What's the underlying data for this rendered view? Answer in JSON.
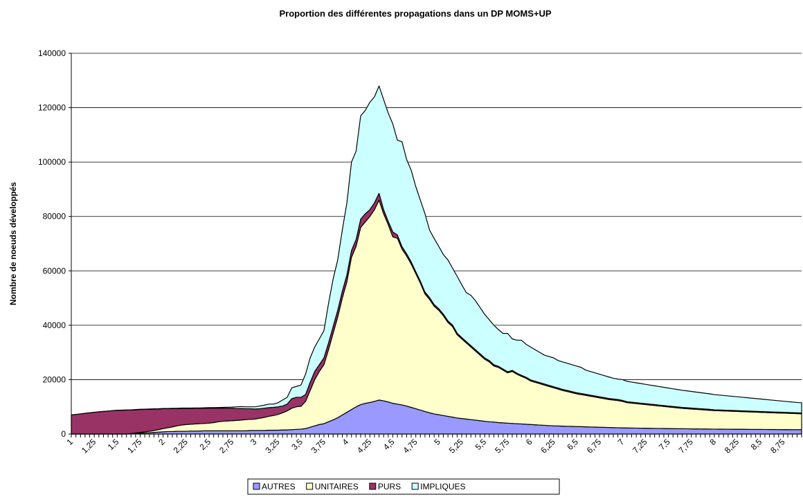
{
  "chart_data": {
    "type": "stacked_area",
    "title": "Proportion des différentes propagations dans un DP MOMS+UP",
    "y_label": "Nombre de noeuds développés",
    "categories": [
      "1",
      null,
      null,
      null,
      null,
      "1,25",
      null,
      null,
      null,
      null,
      "1,5",
      null,
      null,
      null,
      null,
      "1,75",
      null,
      null,
      null,
      null,
      "2",
      null,
      null,
      null,
      null,
      "2,25",
      null,
      null,
      null,
      null,
      "2,5",
      null,
      null,
      null,
      null,
      "2,75",
      null,
      null,
      null,
      null,
      "3",
      null,
      null,
      null,
      null,
      "3,25",
      null,
      null,
      null,
      null,
      "3,5",
      null,
      null,
      null,
      null,
      "3,75",
      null,
      null,
      null,
      null,
      "4",
      null,
      null,
      null,
      null,
      "4,25",
      null,
      null,
      null,
      null,
      "4,5",
      null,
      null,
      null,
      null,
      "4,75",
      null,
      null,
      null,
      null,
      "5",
      null,
      null,
      null,
      null,
      "5,25",
      null,
      null,
      null,
      null,
      "5,5",
      null,
      null,
      null,
      null,
      "5,75",
      null,
      null,
      null,
      null,
      "6",
      null,
      null,
      null,
      null,
      "6,25",
      null,
      null,
      null,
      null,
      "6,5",
      null,
      null,
      null,
      null,
      "6,75",
      null,
      null,
      null,
      null,
      "7",
      null,
      null,
      null,
      null,
      "7,25",
      null,
      null,
      null,
      null,
      "7,5",
      null,
      null,
      null,
      null,
      "7,75",
      null,
      null,
      null,
      null,
      "8",
      null,
      null,
      null,
      null,
      "8,25",
      null,
      null,
      null,
      null,
      "8,5",
      null,
      null,
      null,
      null,
      "8,75",
      null,
      null,
      null,
      null
    ],
    "series": [
      {
        "name": "AUTRES",
        "color": "#9999ff",
        "values": [
          0,
          0,
          0,
          0,
          0,
          0,
          0,
          0,
          0,
          0,
          0,
          0,
          0,
          100,
          200,
          300,
          400,
          500,
          600,
          700,
          800,
          900,
          900,
          1000,
          1000,
          1000,
          1100,
          1100,
          1100,
          1200,
          1200,
          1200,
          1200,
          1200,
          1200,
          1200,
          1200,
          1200,
          1200,
          1300,
          1300,
          1300,
          1300,
          1400,
          1400,
          1400,
          1500,
          1500,
          1600,
          1700,
          1800,
          2000,
          2500,
          3000,
          3500,
          3800,
          4500,
          5200,
          6000,
          7000,
          8000,
          9000,
          10000,
          10800,
          11300,
          11600,
          12000,
          12500,
          12200,
          11800,
          11300,
          11000,
          10700,
          10300,
          9800,
          9300,
          8800,
          8300,
          7800,
          7400,
          7100,
          6800,
          6500,
          6200,
          5900,
          5700,
          5500,
          5300,
          5100,
          4900,
          4700,
          4500,
          4400,
          4200,
          4100,
          4000,
          3900,
          3800,
          3700,
          3600,
          3500,
          3400,
          3300,
          3200,
          3100,
          3000,
          2950,
          2900,
          2850,
          2800,
          2750,
          2700,
          2650,
          2600,
          2550,
          2500,
          2450,
          2400,
          2350,
          2300,
          2250,
          2230,
          2200,
          2180,
          2150,
          2130,
          2100,
          2080,
          2050,
          2030,
          2000,
          1980,
          1960,
          1940,
          1920,
          1900,
          1880,
          1860,
          1840,
          1820,
          1800,
          1790,
          1780,
          1770,
          1760,
          1750,
          1740,
          1720,
          1700,
          1690,
          1680,
          1670,
          1660,
          1650,
          1640,
          1630,
          1620,
          1610,
          1600,
          1600
        ]
      },
      {
        "name": "UNITAIRES",
        "color": "#ffffcc",
        "values": [
          0,
          0,
          0,
          0,
          0,
          0,
          0,
          0,
          0,
          0,
          0,
          0,
          0,
          100,
          200,
          300,
          400,
          500,
          700,
          900,
          1200,
          1400,
          1700,
          2000,
          2300,
          2500,
          2500,
          2600,
          2700,
          2700,
          2800,
          3000,
          3300,
          3500,
          3600,
          3700,
          3800,
          3900,
          4100,
          4100,
          4200,
          4500,
          4800,
          5100,
          5400,
          5800,
          6300,
          7000,
          7900,
          8300,
          8400,
          10000,
          13500,
          17000,
          19500,
          21700,
          26500,
          31800,
          37000,
          43000,
          48000,
          56000,
          59000,
          65200,
          66700,
          68400,
          70500,
          73500,
          68800,
          65200,
          61200,
          61000,
          57300,
          55200,
          52700,
          49700,
          46700,
          43200,
          41700,
          39600,
          38400,
          36700,
          34500,
          33300,
          30600,
          29300,
          28000,
          26700,
          25400,
          24100,
          22800,
          22000,
          20600,
          20300,
          19400,
          18500,
          19100,
          18200,
          17500,
          16900,
          16000,
          15600,
          15200,
          14800,
          14400,
          14000,
          13550,
          13100,
          12750,
          12400,
          12050,
          11800,
          11550,
          11300,
          11050,
          10800,
          10550,
          10300,
          10150,
          10000,
          9750,
          9300,
          9150,
          9000,
          8850,
          8700,
          8550,
          8400,
          8250,
          8100,
          7950,
          7800,
          7650,
          7500,
          7400,
          7300,
          7200,
          7100,
          7000,
          6900,
          6800,
          6750,
          6700,
          6650,
          6600,
          6550,
          6500,
          6450,
          6400,
          6350,
          6300,
          6250,
          6200,
          6150,
          6100,
          6050,
          6000,
          5950,
          5900,
          5850
        ]
      },
      {
        "name": "PURS",
        "color": "#993366",
        "values": [
          7000,
          7200,
          7400,
          7600,
          7800,
          8000,
          8150,
          8300,
          8450,
          8600,
          8700,
          8750,
          8800,
          8650,
          8500,
          8400,
          8250,
          8100,
          7850,
          7600,
          7300,
          7000,
          6750,
          6350,
          6100,
          5900,
          5800,
          5750,
          5650,
          5550,
          5500,
          5300,
          5000,
          4800,
          4700,
          4600,
          4400,
          4300,
          4000,
          3900,
          3700,
          3500,
          3400,
          3200,
          3000,
          2800,
          2500,
          2500,
          3500,
          3500,
          3300,
          2500,
          3000,
          3000,
          2500,
          2500,
          2500,
          2500,
          2500,
          2500,
          2500,
          2500,
          2500,
          3000,
          3000,
          2500,
          2500,
          2500,
          1500,
          1200,
          1800,
          1200,
          900,
          800,
          800,
          700,
          700,
          700,
          700,
          600,
          600,
          600,
          600,
          600,
          600,
          500,
          500,
          500,
          500,
          500,
          500,
          500,
          500,
          400,
          400,
          400,
          400,
          400,
          400,
          400,
          400,
          400,
          400,
          400,
          400,
          400,
          400,
          400,
          400,
          400,
          400,
          400,
          400,
          400,
          400,
          400,
          400,
          400,
          400,
          400,
          350,
          350,
          350,
          350,
          350,
          350,
          350,
          350,
          350,
          350,
          350,
          350,
          350,
          350,
          350,
          350,
          350,
          350,
          350,
          350,
          300,
          300,
          300,
          300,
          300,
          300,
          300,
          300,
          300,
          300,
          300,
          300,
          300,
          300,
          300,
          300,
          300,
          300,
          300,
          300
        ]
      },
      {
        "name": "IMPLIQUES",
        "color": "#ccffff",
        "values": [
          0,
          0,
          0,
          0,
          0,
          0,
          0,
          0,
          0,
          0,
          50,
          50,
          50,
          50,
          100,
          100,
          100,
          100,
          100,
          100,
          100,
          100,
          100,
          100,
          150,
          150,
          150,
          150,
          150,
          200,
          200,
          200,
          250,
          300,
          350,
          400,
          600,
          700,
          700,
          700,
          800,
          1000,
          1100,
          1300,
          1200,
          1500,
          2200,
          2500,
          4000,
          4000,
          4500,
          7500,
          9000,
          9000,
          9500,
          10000,
          14500,
          17500,
          18500,
          22500,
          26500,
          32500,
          32500,
          38000,
          38000,
          39500,
          39000,
          39500,
          40500,
          39800,
          39700,
          34800,
          38600,
          34700,
          33700,
          31300,
          29800,
          28800,
          24800,
          24300,
          22900,
          21900,
          22400,
          20900,
          20900,
          19400,
          18000,
          18500,
          18000,
          17000,
          16000,
          15000,
          14500,
          13500,
          13100,
          14100,
          11600,
          12100,
          12900,
          12100,
          12100,
          11600,
          11100,
          10600,
          10600,
          10600,
          10100,
          10100,
          10000,
          9900,
          9800,
          9600,
          8900,
          8700,
          8500,
          8300,
          8100,
          7900,
          7600,
          7500,
          7650,
          7500,
          7400,
          7300,
          7200,
          7100,
          7000,
          6900,
          6800,
          6700,
          6600,
          6500,
          6400,
          6300,
          6200,
          6100,
          6000,
          5900,
          5800,
          5700,
          5600,
          5500,
          5400,
          5300,
          5200,
          5100,
          5000,
          4900,
          4800,
          4700,
          4600,
          4500,
          4400,
          4300,
          4200,
          4100,
          4000,
          3900,
          3800,
          3750
        ]
      }
    ],
    "ylim": [
      0,
      140000
    ],
    "yticks": [
      0,
      20000,
      40000,
      60000,
      80000,
      100000,
      120000,
      140000
    ],
    "grid": true,
    "legend": "bottom"
  }
}
